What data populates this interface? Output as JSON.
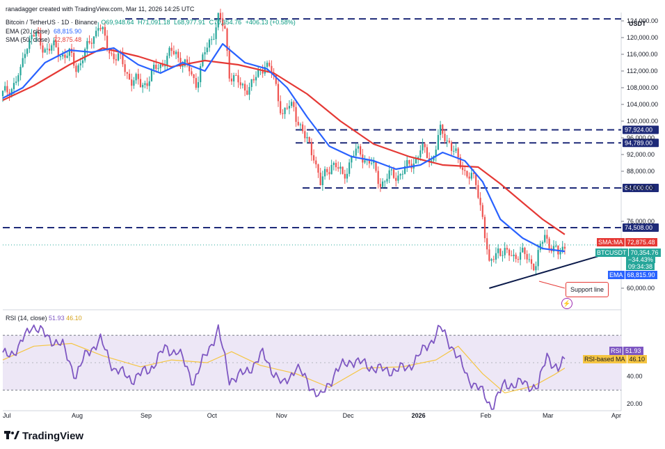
{
  "header": {
    "creator_line": "ranadagger created with TradingView.com, Mar 11, 2026 14:25 UTC",
    "symbol_line": "Bitcoin / TetherUS · 1D · Binance",
    "ohlc": {
      "o": "O69,948.64",
      "h": "H71,091.18",
      "l": "L68,977.91",
      "c": "C70,354.76",
      "chg": "+406.13 (+0.58%)"
    },
    "ema_label": "EMA (20, close)",
    "ema_value": "68,815.90",
    "sma_label": "SMA (50, close)",
    "sma_value": "72,875.48",
    "currency": "USDT"
  },
  "colors": {
    "up": "#26a69a",
    "down": "#ef5350",
    "ema": "#2962ff",
    "sma": "#e53935",
    "level": "#1e2a78",
    "rsi": "#7e57c2",
    "rsi_ma": "#f5c542",
    "rsi_band": "#ede7f6"
  },
  "price_boxes": {
    "sma": {
      "label": "SMA:MA",
      "value": "72,875.48"
    },
    "last": {
      "label": "BTCUSDT",
      "value": "70,354.76",
      "pct": "−34.43%",
      "timer": "09:34:38"
    },
    "ema": {
      "label": "EMA",
      "value": "68,815.90"
    }
  },
  "annotations": {
    "support_line": "Support line"
  },
  "footer": {
    "brand": "TradingView"
  },
  "chart_data": [
    {
      "type": "candlestick",
      "title": "Bitcoin / TetherUS · 1D · Binance",
      "ylim": [
        56000,
        126000
      ],
      "y_ticks": [
        60000,
        76000,
        84000,
        88000,
        92000,
        96000,
        100000,
        104000,
        108000,
        112000,
        116000,
        120000,
        124000
      ],
      "y_tick_labels": [
        "60,000.00",
        "76,000.00",
        "84,000.00",
        "88,000.00",
        "92,000.00",
        "96,000.00",
        "100,000.00",
        "104,000.00",
        "108,000.00",
        "112,000.00",
        "116,000.00",
        "120,000.00",
        "124,000.00"
      ],
      "x_tick_labels": [
        "Jul",
        "Aug",
        "Sep",
        "Oct",
        "Nov",
        "Dec",
        "2026",
        "Feb",
        "Mar",
        "Apr"
      ],
      "horizontal_levels": [
        {
          "value": 124474,
          "label": ""
        },
        {
          "value": 97924,
          "label": "97,924.00"
        },
        {
          "value": 94789,
          "label": "94,789.00"
        },
        {
          "value": 84000,
          "label": "84,000.00"
        },
        {
          "value": 74508,
          "label": "74,508.00"
        }
      ],
      "support_line": {
        "from": {
          "date": "2026-02-05",
          "price": 60000
        },
        "to": {
          "date": "2026-03-27",
          "price": 67800
        }
      },
      "series": [
        {
          "name": "Price close",
          "points": [
            [
              "2025-07-01",
              106000
            ],
            [
              "2025-07-05",
              108500
            ],
            [
              "2025-07-09",
              111000
            ],
            [
              "2025-07-11",
              117500
            ],
            [
              "2025-07-14",
              121000
            ],
            [
              "2025-07-19",
              118000
            ],
            [
              "2025-07-25",
              117000
            ],
            [
              "2025-07-31",
              115500
            ],
            [
              "2025-08-03",
              113000
            ],
            [
              "2025-08-08",
              117000
            ],
            [
              "2025-08-13",
              123500
            ],
            [
              "2025-08-17",
              117500
            ],
            [
              "2025-08-22",
              115000
            ],
            [
              "2025-08-28",
              110000
            ],
            [
              "2025-09-01",
              108500
            ],
            [
              "2025-09-06",
              111000
            ],
            [
              "2025-09-12",
              115000
            ],
            [
              "2025-09-17",
              116500
            ],
            [
              "2025-09-22",
              112500
            ],
            [
              "2025-09-26",
              109500
            ],
            [
              "2025-10-02",
              119000
            ],
            [
              "2025-10-06",
              124500
            ],
            [
              "2025-10-09",
              121500
            ],
            [
              "2025-10-11",
              112000
            ],
            [
              "2025-10-16",
              108000
            ],
            [
              "2025-10-22",
              109000
            ],
            [
              "2025-10-27",
              114500
            ],
            [
              "2025-10-31",
              110000
            ],
            [
              "2025-11-04",
              102000
            ],
            [
              "2025-11-09",
              103500
            ],
            [
              "2025-11-14",
              95500
            ],
            [
              "2025-11-18",
              92500
            ],
            [
              "2025-11-21",
              84500
            ],
            [
              "2025-11-26",
              90500
            ],
            [
              "2025-12-01",
              86500
            ],
            [
              "2025-12-05",
              91500
            ],
            [
              "2025-12-09",
              92500
            ],
            [
              "2025-12-13",
              90200
            ],
            [
              "2025-12-18",
              85500
            ],
            [
              "2025-12-24",
              87000
            ],
            [
              "2025-12-30",
              88500
            ],
            [
              "2026-01-05",
              93000
            ],
            [
              "2026-01-10",
              91000
            ],
            [
              "2026-01-14",
              97000
            ],
            [
              "2026-01-18",
              95500
            ],
            [
              "2026-01-22",
              90000
            ],
            [
              "2026-01-26",
              88000
            ],
            [
              "2026-01-30",
              84500
            ],
            [
              "2026-02-02",
              78000
            ],
            [
              "2026-02-05",
              64500
            ],
            [
              "2026-02-09",
              70000
            ],
            [
              "2026-02-13",
              67500
            ],
            [
              "2026-02-18",
              68500
            ],
            [
              "2026-02-22",
              67000
            ],
            [
              "2026-02-26",
              66000
            ],
            [
              "2026-03-02",
              72500
            ],
            [
              "2026-03-05",
              70500
            ],
            [
              "2026-03-08",
              67500
            ],
            [
              "2026-03-11",
              70354
            ]
          ]
        },
        {
          "name": "EMA (20, close)",
          "points": [
            [
              "2025-07-01",
              105500
            ],
            [
              "2025-07-10",
              108000
            ],
            [
              "2025-07-20",
              114000
            ],
            [
              "2025-07-31",
              117000
            ],
            [
              "2025-08-10",
              116500
            ],
            [
              "2025-08-20",
              117500
            ],
            [
              "2025-08-31",
              113500
            ],
            [
              "2025-09-10",
              111500
            ],
            [
              "2025-09-20",
              114000
            ],
            [
              "2025-09-30",
              112000
            ],
            [
              "2025-10-08",
              118500
            ],
            [
              "2025-10-18",
              114000
            ],
            [
              "2025-10-28",
              112500
            ],
            [
              "2025-11-06",
              108000
            ],
            [
              "2025-11-15",
              101000
            ],
            [
              "2025-11-25",
              94000
            ],
            [
              "2025-12-05",
              91500
            ],
            [
              "2025-12-15",
              90500
            ],
            [
              "2025-12-25",
              88500
            ],
            [
              "2026-01-05",
              89500
            ],
            [
              "2026-01-15",
              92500
            ],
            [
              "2026-01-25",
              90500
            ],
            [
              "2026-02-02",
              85500
            ],
            [
              "2026-02-10",
              76500
            ],
            [
              "2026-02-20",
              72000
            ],
            [
              "2026-03-01",
              69500
            ],
            [
              "2026-03-11",
              68815
            ]
          ]
        },
        {
          "name": "SMA (50, close)",
          "points": [
            [
              "2025-07-01",
              105000
            ],
            [
              "2025-07-15",
              108500
            ],
            [
              "2025-07-31",
              113500
            ],
            [
              "2025-08-15",
              117500
            ],
            [
              "2025-08-31",
              115500
            ],
            [
              "2025-09-15",
              113000
            ],
            [
              "2025-09-30",
              114500
            ],
            [
              "2025-10-15",
              113500
            ],
            [
              "2025-10-31",
              111500
            ],
            [
              "2025-11-15",
              106500
            ],
            [
              "2025-11-30",
              100000
            ],
            [
              "2025-12-15",
              94500
            ],
            [
              "2025-12-31",
              91500
            ],
            [
              "2026-01-15",
              89500
            ],
            [
              "2026-01-31",
              89000
            ],
            [
              "2026-02-10",
              85000
            ],
            [
              "2026-02-20",
              80500
            ],
            [
              "2026-03-01",
              76500
            ],
            [
              "2026-03-11",
              72875
            ]
          ]
        }
      ]
    },
    {
      "type": "line",
      "title": "RSI (14, close)",
      "ylim": [
        15,
        85
      ],
      "y_ticks": [
        20,
        40,
        60
      ],
      "y_tick_labels": [
        "20.00",
        "40.00",
        "60.00"
      ],
      "bands": [
        30,
        70
      ],
      "series": [
        {
          "name": "RSI",
          "value_label": "51.93",
          "points": [
            [
              "2025-07-01",
              55
            ],
            [
              "2025-07-08",
              60
            ],
            [
              "2025-07-14",
              78
            ],
            [
              "2025-07-20",
              70
            ],
            [
              "2025-07-28",
              62
            ],
            [
              "2025-08-03",
              40
            ],
            [
              "2025-08-08",
              58
            ],
            [
              "2025-08-14",
              66
            ],
            [
              "2025-08-20",
              46
            ],
            [
              "2025-08-28",
              38
            ],
            [
              "2025-09-05",
              45
            ],
            [
              "2025-09-12",
              60
            ],
            [
              "2025-09-18",
              58
            ],
            [
              "2025-09-25",
              36
            ],
            [
              "2025-10-01",
              58
            ],
            [
              "2025-10-06",
              74
            ],
            [
              "2025-10-11",
              38
            ],
            [
              "2025-10-18",
              42
            ],
            [
              "2025-10-26",
              56
            ],
            [
              "2025-11-04",
              33
            ],
            [
              "2025-11-10",
              47
            ],
            [
              "2025-11-21",
              24
            ],
            [
              "2025-11-28",
              44
            ],
            [
              "2025-12-05",
              52
            ],
            [
              "2025-12-12",
              48
            ],
            [
              "2025-12-20",
              44
            ],
            [
              "2025-12-30",
              46
            ],
            [
              "2026-01-06",
              58
            ],
            [
              "2026-01-14",
              75
            ],
            [
              "2026-01-20",
              60
            ],
            [
              "2026-01-26",
              40
            ],
            [
              "2026-02-01",
              30
            ],
            [
              "2026-02-06",
              18
            ],
            [
              "2026-02-12",
              34
            ],
            [
              "2026-02-20",
              35
            ],
            [
              "2026-02-27",
              32
            ],
            [
              "2026-03-03",
              56
            ],
            [
              "2026-03-08",
              44
            ],
            [
              "2026-03-11",
              51.93
            ]
          ]
        },
        {
          "name": "RSI-based MA",
          "value_label": "46.10",
          "points": [
            [
              "2025-07-01",
              52
            ],
            [
              "2025-07-15",
              62
            ],
            [
              "2025-08-01",
              64
            ],
            [
              "2025-08-15",
              55
            ],
            [
              "2025-09-01",
              47
            ],
            [
              "2025-09-15",
              52
            ],
            [
              "2025-10-01",
              50
            ],
            [
              "2025-10-12",
              58
            ],
            [
              "2025-10-25",
              48
            ],
            [
              "2025-11-10",
              42
            ],
            [
              "2025-11-25",
              32
            ],
            [
              "2025-12-10",
              46
            ],
            [
              "2025-12-28",
              47
            ],
            [
              "2026-01-12",
              52
            ],
            [
              "2026-01-22",
              62
            ],
            [
              "2026-02-02",
              42
            ],
            [
              "2026-02-12",
              28
            ],
            [
              "2026-02-25",
              33
            ],
            [
              "2026-03-06",
              41
            ],
            [
              "2026-03-11",
              46.1
            ]
          ]
        }
      ]
    }
  ]
}
